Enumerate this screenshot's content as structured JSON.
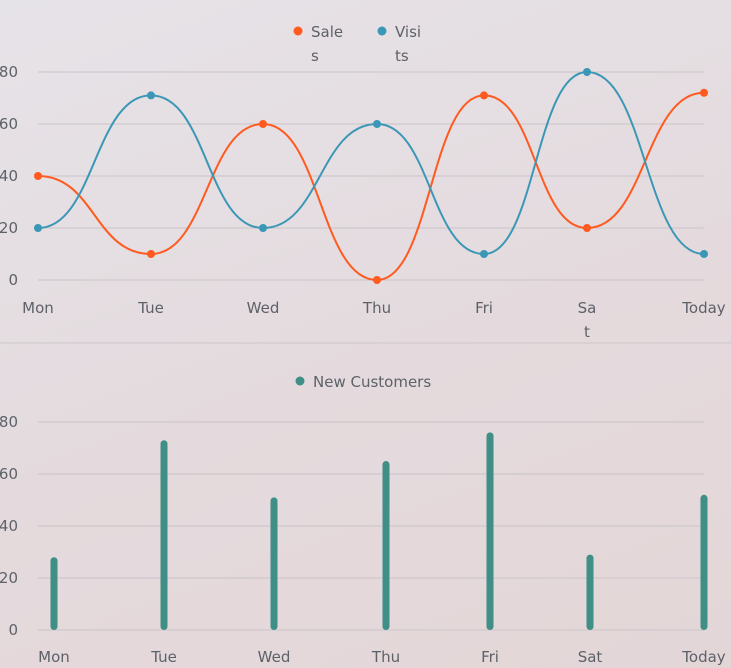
{
  "colors": {
    "sales": "#ff5a1f",
    "visits": "#3b97b6",
    "new_customers": "#3f8f86"
  },
  "chart_data": [
    {
      "type": "line",
      "categories": [
        "Mon",
        "Tue",
        "Wed",
        "Thu",
        "Fri",
        "Sat",
        "Today"
      ],
      "series": [
        {
          "name": "Sales",
          "values": [
            40,
            10,
            60,
            0,
            71,
            20,
            72
          ]
        },
        {
          "name": "Visits",
          "values": [
            20,
            71,
            20,
            60,
            10,
            80,
            10
          ]
        }
      ],
      "ylim": [
        0,
        80
      ],
      "yticks": [
        0,
        20,
        40,
        60,
        80
      ],
      "smooth": true,
      "grid": true,
      "legend": "top-center"
    },
    {
      "type": "bar",
      "categories": [
        "Mon",
        "Tue",
        "Wed",
        "Thu",
        "Fri",
        "Sat",
        "Today"
      ],
      "series": [
        {
          "name": "New Customers",
          "values": [
            28,
            73,
            51,
            65,
            76,
            29,
            52
          ]
        }
      ],
      "ylim": [
        0,
        80
      ],
      "yticks": [
        0,
        20,
        40,
        60,
        80
      ],
      "grid": true,
      "legend": "top-center"
    }
  ]
}
